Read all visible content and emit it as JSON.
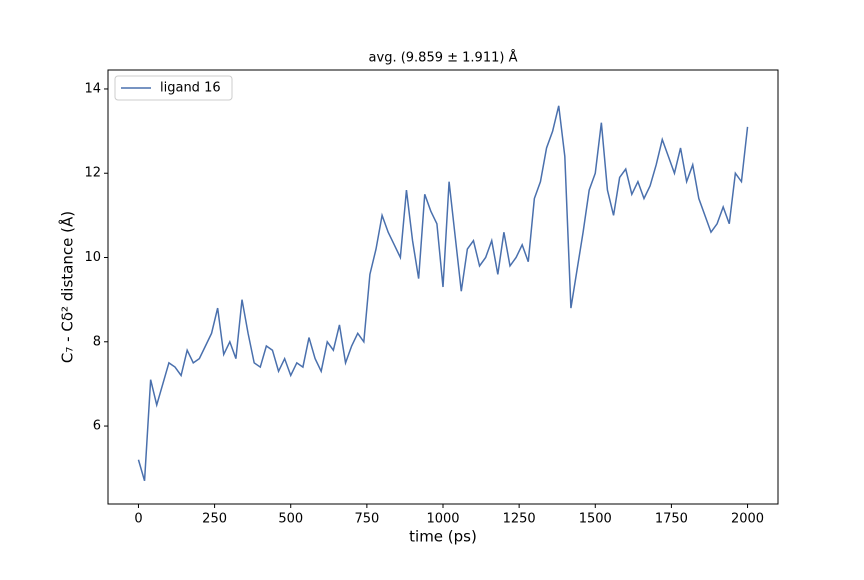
{
  "chart_data": {
    "type": "line",
    "title": "avg. (9.859 ± 1.911) Å",
    "x_label": "time (ps)",
    "y_label": "C₇ - Cδ² distance (Å)",
    "x": [
      0,
      20,
      40,
      60,
      80,
      100,
      120,
      140,
      160,
      180,
      200,
      220,
      240,
      260,
      280,
      300,
      320,
      340,
      360,
      380,
      400,
      420,
      440,
      460,
      480,
      500,
      520,
      540,
      560,
      580,
      600,
      620,
      640,
      660,
      680,
      700,
      720,
      740,
      760,
      780,
      800,
      820,
      840,
      860,
      880,
      900,
      920,
      940,
      960,
      980,
      1000,
      1020,
      1040,
      1060,
      1080,
      1100,
      1120,
      1140,
      1160,
      1180,
      1200,
      1220,
      1240,
      1260,
      1280,
      1300,
      1320,
      1340,
      1360,
      1380,
      1400,
      1420,
      1440,
      1460,
      1480,
      1500,
      1520,
      1540,
      1560,
      1580,
      1600,
      1620,
      1640,
      1660,
      1680,
      1700,
      1720,
      1740,
      1760,
      1780,
      1800,
      1820,
      1840,
      1860,
      1880,
      1900,
      1920,
      1940,
      1960,
      1980,
      2000
    ],
    "series": [
      {
        "name": "ligand 16",
        "color": "#4a70ad",
        "values": [
          5.2,
          4.7,
          7.1,
          6.5,
          7.0,
          7.5,
          7.4,
          7.2,
          7.8,
          7.5,
          7.6,
          7.9,
          8.2,
          8.8,
          7.7,
          8.0,
          7.6,
          9.0,
          8.2,
          7.5,
          7.4,
          7.9,
          7.8,
          7.3,
          7.6,
          7.2,
          7.5,
          7.4,
          8.1,
          7.6,
          7.3,
          8.0,
          7.8,
          8.4,
          7.5,
          7.9,
          8.2,
          8.0,
          9.6,
          10.2,
          11.0,
          10.6,
          10.3,
          10.0,
          11.6,
          10.4,
          9.5,
          11.5,
          11.1,
          10.8,
          9.3,
          11.8,
          10.5,
          9.2,
          10.2,
          10.4,
          9.8,
          10.0,
          10.4,
          9.6,
          10.6,
          9.8,
          10.0,
          10.3,
          9.9,
          11.4,
          11.8,
          12.6,
          13.0,
          13.6,
          12.4,
          8.8,
          9.7,
          10.6,
          11.6,
          12.0,
          13.2,
          11.6,
          11.0,
          11.9,
          12.1,
          11.5,
          11.8,
          11.4,
          11.7,
          12.2,
          12.8,
          12.4,
          12.0,
          12.6,
          11.8,
          12.2,
          11.4,
          11.0,
          10.6,
          10.8,
          11.2,
          10.8,
          12.0,
          11.8,
          13.1
        ]
      }
    ],
    "xlim": [
      -100,
      2100
    ],
    "ylim": [
      4.15,
      14.45
    ],
    "xticks": [
      0,
      250,
      500,
      750,
      1000,
      1250,
      1500,
      1750,
      2000
    ],
    "yticks": [
      6,
      8,
      10,
      12,
      14
    ],
    "legend": "upper left"
  }
}
